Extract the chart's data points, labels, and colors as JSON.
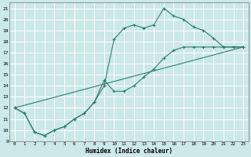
{
  "xlabel": "Humidex (Indice chaleur)",
  "bg_color": "#cce8e8",
  "grid_color": "#ffffff",
  "line_color": "#2e7d72",
  "xlim": [
    -0.5,
    23.5
  ],
  "ylim": [
    9,
    21.5
  ],
  "xticks": [
    0,
    1,
    2,
    3,
    4,
    5,
    6,
    7,
    8,
    9,
    10,
    11,
    12,
    13,
    14,
    15,
    16,
    17,
    18,
    19,
    20,
    21,
    22,
    23
  ],
  "yticks": [
    9,
    10,
    11,
    12,
    13,
    14,
    15,
    16,
    17,
    18,
    19,
    20,
    21
  ],
  "line1_x": [
    0,
    1,
    2,
    3,
    4,
    5,
    6,
    7,
    8,
    9,
    10,
    11,
    12,
    13,
    14,
    15,
    16,
    17,
    18,
    19,
    20,
    21,
    22,
    23
  ],
  "line1_y": [
    12,
    11.5,
    9.8,
    9.5,
    10.0,
    10.3,
    11.0,
    11.5,
    12.5,
    14.0,
    18.2,
    19.2,
    19.5,
    19.2,
    19.5,
    21.0,
    20.3,
    20.0,
    19.3,
    19.0,
    18.3,
    17.5,
    17.5,
    17.5
  ],
  "line2_x": [
    0,
    1,
    2,
    3,
    4,
    5,
    6,
    7,
    8,
    9,
    10,
    11,
    12,
    13,
    14,
    15,
    16,
    17,
    18,
    19,
    20,
    21,
    22,
    23
  ],
  "line2_y": [
    12,
    11.5,
    9.8,
    9.5,
    10.0,
    10.3,
    11.0,
    11.5,
    12.5,
    14.5,
    13.5,
    13.5,
    14.0,
    14.8,
    15.5,
    16.5,
    17.2,
    17.5,
    17.5,
    17.5,
    17.5,
    17.5,
    17.5,
    17.5
  ],
  "line3_x": [
    0,
    23
  ],
  "line3_y": [
    12,
    17.5
  ]
}
